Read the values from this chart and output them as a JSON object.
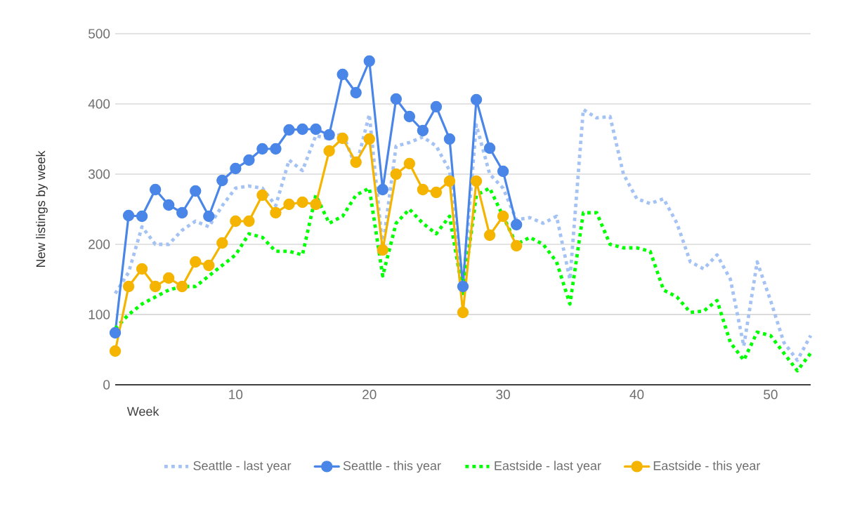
{
  "chart_data": {
    "type": "line",
    "xlabel": "Week",
    "ylabel": "New listings by week",
    "xlim": [
      1,
      53
    ],
    "xticks": [
      10,
      20,
      30,
      40,
      50
    ],
    "ylim": [
      0,
      500
    ],
    "yticks": [
      0,
      100,
      200,
      300,
      400,
      500
    ],
    "grid": "y",
    "legend": "bottom",
    "series": [
      {
        "name": "Seattle - last year",
        "color": "#a4c2f4",
        "line_style": "dotted",
        "marker": "none",
        "x": [
          1,
          2,
          3,
          4,
          5,
          6,
          7,
          8,
          9,
          10,
          11,
          12,
          13,
          14,
          15,
          16,
          17,
          18,
          19,
          20,
          21,
          22,
          23,
          24,
          25,
          26,
          27,
          28,
          29,
          30,
          31,
          32,
          33,
          34,
          35,
          36,
          37,
          38,
          39,
          40,
          41,
          42,
          43,
          44,
          45,
          46,
          47,
          48,
          49,
          50,
          51,
          52,
          53
        ],
        "values": [
          130,
          160,
          225,
          200,
          200,
          220,
          233,
          225,
          255,
          280,
          283,
          280,
          255,
          320,
          305,
          355,
          350,
          358,
          310,
          385,
          195,
          340,
          345,
          353,
          340,
          305,
          140,
          370,
          300,
          280,
          235,
          238,
          230,
          240,
          150,
          392,
          380,
          382,
          300,
          265,
          258,
          265,
          230,
          175,
          165,
          185,
          150,
          55,
          175,
          120,
          60,
          35,
          70
        ]
      },
      {
        "name": "Seattle - this year",
        "color": "#4a86e8",
        "line_style": "solid",
        "marker": "circle",
        "x": [
          1,
          2,
          3,
          4,
          5,
          6,
          7,
          8,
          9,
          10,
          11,
          12,
          13,
          14,
          15,
          16,
          17,
          18,
          19,
          20,
          21,
          22,
          23,
          24,
          25,
          26,
          27,
          28,
          29,
          30,
          31
        ],
        "values": [
          74,
          241,
          240,
          278,
          256,
          245,
          276,
          240,
          291,
          308,
          320,
          336,
          336,
          363,
          364,
          364,
          356,
          442,
          416,
          461,
          278,
          407,
          382,
          362,
          396,
          350,
          140,
          406,
          337,
          304,
          228
        ]
      },
      {
        "name": "Eastside - last year",
        "color": "#00ff00",
        "line_style": "dotted",
        "marker": "none",
        "x": [
          1,
          2,
          3,
          4,
          5,
          6,
          7,
          8,
          9,
          10,
          11,
          12,
          13,
          14,
          15,
          16,
          17,
          18,
          19,
          20,
          21,
          22,
          23,
          24,
          25,
          26,
          27,
          28,
          29,
          30,
          31,
          32,
          33,
          34,
          35,
          36,
          37,
          38,
          39,
          40,
          41,
          42,
          43,
          44,
          45,
          46,
          47,
          48,
          49,
          50,
          51,
          52,
          53
        ],
        "values": [
          80,
          100,
          115,
          125,
          135,
          140,
          140,
          155,
          170,
          185,
          215,
          210,
          190,
          190,
          185,
          270,
          230,
          240,
          270,
          280,
          155,
          230,
          250,
          230,
          215,
          240,
          130,
          270,
          280,
          240,
          200,
          210,
          200,
          175,
          115,
          245,
          245,
          200,
          195,
          195,
          190,
          135,
          125,
          103,
          105,
          120,
          60,
          35,
          75,
          70,
          45,
          20,
          45
        ]
      },
      {
        "name": "Eastside - this year",
        "color": "#f4b400",
        "line_style": "solid",
        "marker": "circle",
        "x": [
          1,
          2,
          3,
          4,
          5,
          6,
          7,
          8,
          9,
          10,
          11,
          12,
          13,
          14,
          15,
          16,
          17,
          18,
          19,
          20,
          21,
          22,
          23,
          24,
          25,
          26,
          27,
          28,
          29,
          30,
          31
        ],
        "values": [
          48,
          140,
          165,
          140,
          152,
          140,
          175,
          170,
          202,
          233,
          233,
          270,
          245,
          257,
          260,
          257,
          333,
          351,
          317,
          350,
          192,
          300,
          315,
          278,
          274,
          290,
          103,
          290,
          213,
          240,
          198
        ]
      }
    ]
  }
}
